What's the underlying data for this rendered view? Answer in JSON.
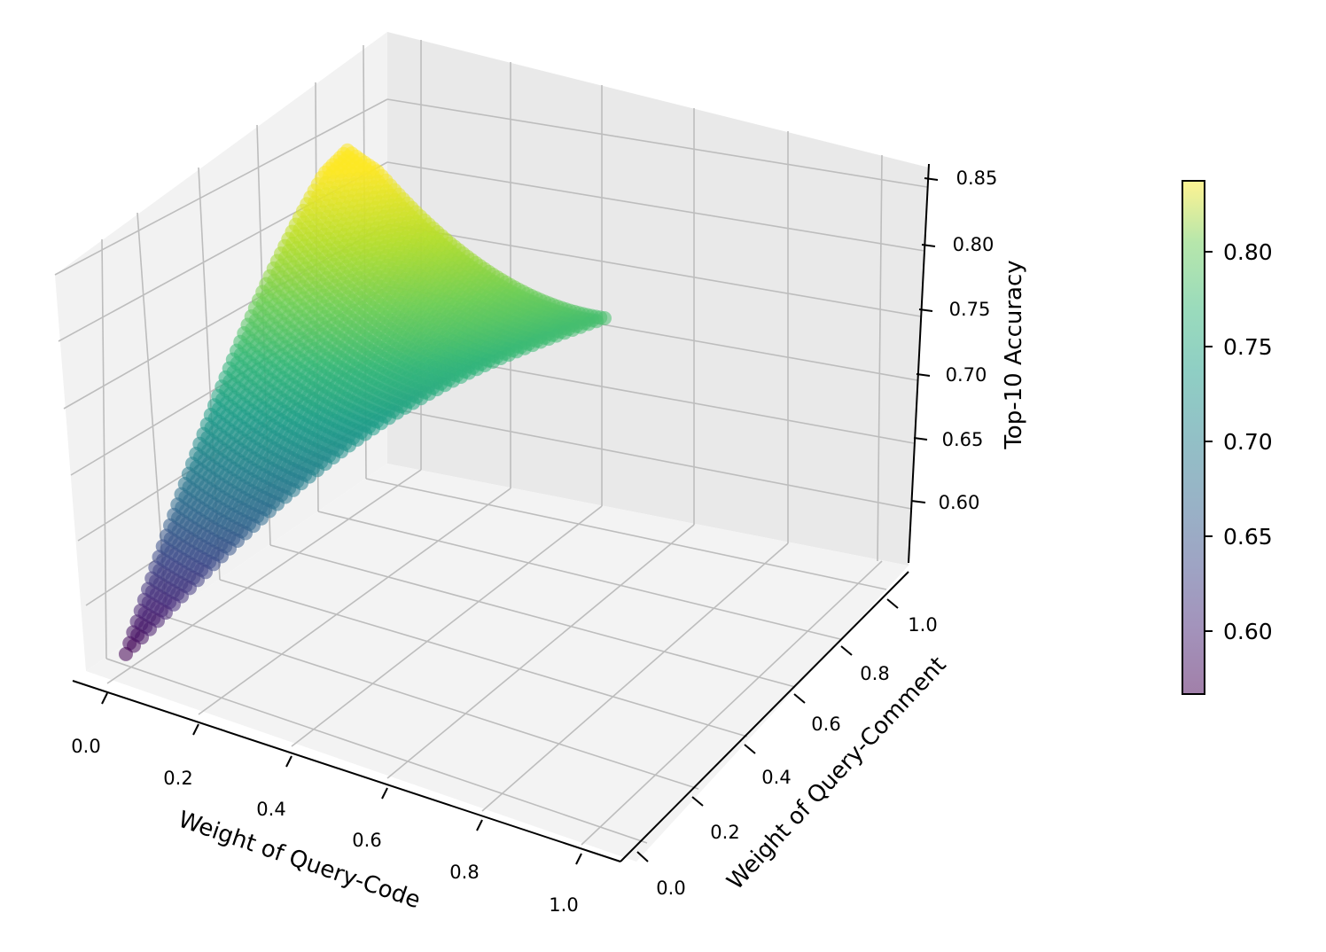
{
  "chart_data": {
    "type": "scatter",
    "title": "",
    "xlabel": "Weight of Query-Code",
    "ylabel": "Weight of Query-Comment",
    "zlabel": "Top-10 Accuracy",
    "xlim": [
      0.0,
      1.0
    ],
    "ylim": [
      0.0,
      1.0
    ],
    "zlim": [
      0.57,
      0.85
    ],
    "x_ticks": [
      "0.0",
      "0.2",
      "0.4",
      "0.6",
      "0.8",
      "1.0"
    ],
    "y_ticks": [
      "0.0",
      "0.2",
      "0.4",
      "0.6",
      "0.8",
      "1.0"
    ],
    "z_ticks": [
      "0.60",
      "0.65",
      "0.70",
      "0.75",
      "0.80",
      "0.85"
    ],
    "colorbar": {
      "colormap": "viridis",
      "alpha": 0.5,
      "range": [
        0.565,
        0.835
      ],
      "ticks": [
        "0.60",
        "0.65",
        "0.70",
        "0.75",
        "0.80"
      ]
    },
    "grid": true,
    "points_sample": [
      {
        "x": 0.0,
        "y": 0.0,
        "z": 0.565
      },
      {
        "x": 0.2,
        "y": 0.0,
        "z": 0.62
      },
      {
        "x": 0.4,
        "y": 0.0,
        "z": 0.66
      },
      {
        "x": 0.6,
        "y": 0.0,
        "z": 0.7
      },
      {
        "x": 0.8,
        "y": 0.0,
        "z": 0.73
      },
      {
        "x": 1.0,
        "y": 0.0,
        "z": 0.76
      },
      {
        "x": 0.0,
        "y": 0.5,
        "z": 0.69
      },
      {
        "x": 0.5,
        "y": 0.5,
        "z": 0.8
      },
      {
        "x": 0.0,
        "y": 1.0,
        "z": 0.78
      },
      {
        "x": 0.2,
        "y": 0.8,
        "z": 0.835
      },
      {
        "x": 1.0,
        "y": 0.5,
        "z": 0.76
      }
    ]
  }
}
